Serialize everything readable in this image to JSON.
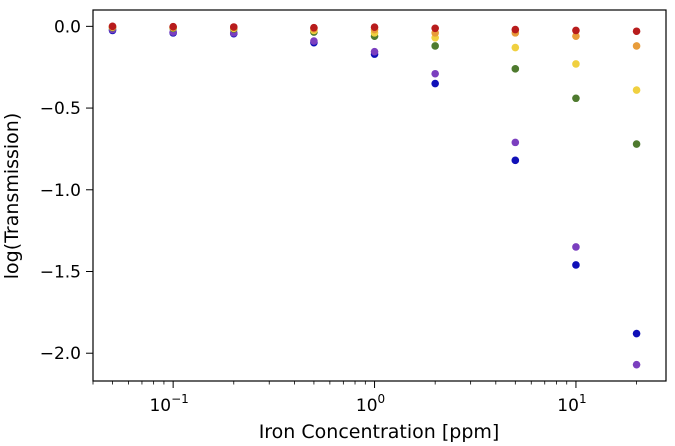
{
  "chart_data": {
    "type": "scatter",
    "title": "",
    "xlabel": "Iron Concentration [ppm]",
    "ylabel": "log(Transmission)",
    "xscale": "log",
    "xlim": [
      0.04,
      28
    ],
    "ylim": [
      -2.17,
      0.1
    ],
    "grid": false,
    "x": [
      0.05,
      0.1,
      0.2,
      0.5,
      1,
      2,
      5,
      10,
      20
    ],
    "x_ticks": [
      {
        "value": 0.1,
        "base": "10",
        "exp": "−1"
      },
      {
        "value": 1,
        "base": "10",
        "exp": "0"
      },
      {
        "value": 10,
        "base": "10",
        "exp": "1"
      }
    ],
    "y_ticks": [
      {
        "value": 0.0,
        "label": "0.0"
      },
      {
        "value": -0.5,
        "label": "−0.5"
      },
      {
        "value": -1.0,
        "label": "−1.0"
      },
      {
        "value": -1.5,
        "label": "−1.5"
      },
      {
        "value": -2.0,
        "label": "−2.0"
      }
    ],
    "series": [
      {
        "color": "#1010b8",
        "values": [
          -0.025,
          -0.04,
          -0.045,
          -0.1,
          -0.17,
          -0.35,
          -0.82,
          -1.46,
          -1.88
        ]
      },
      {
        "color": "#7b3fbf",
        "values": [
          -0.02,
          -0.035,
          -0.04,
          -0.09,
          -0.155,
          -0.29,
          -0.71,
          -1.35,
          -2.07
        ]
      },
      {
        "color": "#4e7a2e",
        "values": [
          -0.008,
          -0.012,
          -0.016,
          -0.035,
          -0.06,
          -0.12,
          -0.26,
          -0.44,
          -0.72
        ]
      },
      {
        "color": "#f0d040",
        "values": [
          -0.005,
          -0.008,
          -0.012,
          -0.025,
          -0.04,
          -0.07,
          -0.13,
          -0.23,
          -0.39
        ]
      },
      {
        "color": "#e89c3a",
        "values": [
          -0.003,
          -0.005,
          -0.007,
          -0.015,
          -0.02,
          -0.04,
          -0.04,
          -0.06,
          -0.12
        ]
      },
      {
        "color": "#b81c1c",
        "values": [
          0.0,
          -0.002,
          -0.004,
          -0.008,
          -0.005,
          -0.012,
          -0.02,
          -0.025,
          -0.03
        ]
      }
    ]
  }
}
